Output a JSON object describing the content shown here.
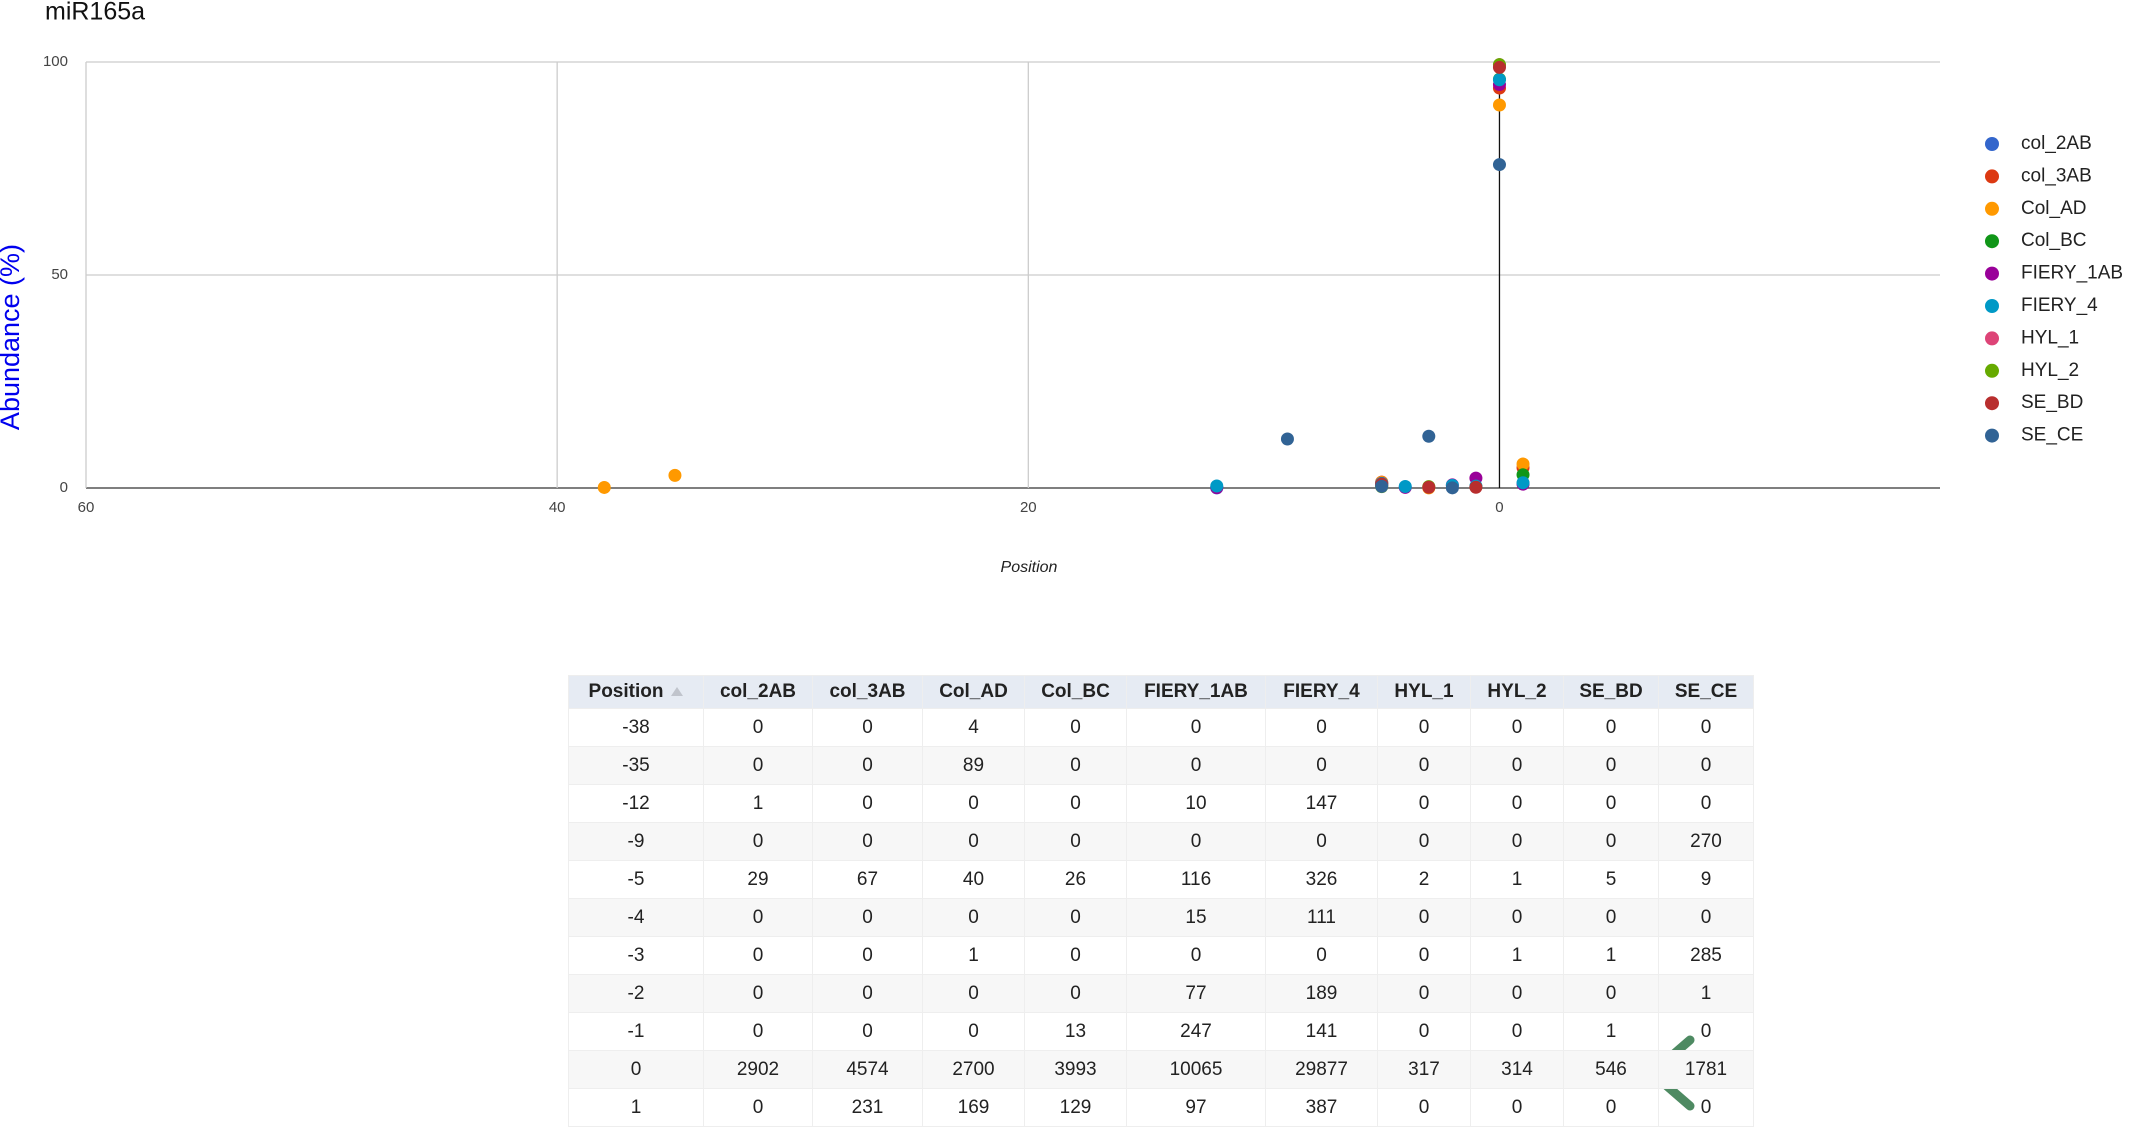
{
  "chart_data": {
    "type": "scatter",
    "title": "miR165a",
    "x_label": "Position",
    "y_label": "Abundance (%)",
    "x": [
      -38,
      -35,
      -12,
      -9,
      -5,
      -4,
      -3,
      -2,
      -1,
      0,
      1
    ],
    "xlim": [
      -60,
      18.7
    ],
    "xticks": [
      {
        "value": -60,
        "label": "60"
      },
      {
        "value": -40,
        "label": "40"
      },
      {
        "value": -20,
        "label": "20"
      },
      0
    ],
    "ylim": [
      0,
      100
    ],
    "yticks": [
      0,
      50,
      100
    ],
    "grid": true,
    "legend": "right",
    "series": [
      {
        "name": "col_2AB",
        "color": "#3366cc",
        "values": [
          null,
          null,
          0.03,
          null,
          0.99,
          null,
          null,
          null,
          null,
          98.98,
          null
        ]
      },
      {
        "name": "col_3AB",
        "color": "#dc3912",
        "values": [
          null,
          null,
          null,
          null,
          1.38,
          null,
          null,
          null,
          null,
          93.88,
          4.74
        ]
      },
      {
        "name": "Col_AD",
        "color": "#ff9900",
        "values": [
          0.13,
          2.96,
          null,
          null,
          1.33,
          null,
          0.03,
          null,
          null,
          89.91,
          5.63
        ]
      },
      {
        "name": "Col_BC",
        "color": "#109618",
        "values": [
          null,
          null,
          null,
          null,
          0.62,
          null,
          null,
          null,
          0.31,
          95.96,
          3.1
        ]
      },
      {
        "name": "FIERY_1AB",
        "color": "#990099",
        "values": [
          null,
          null,
          0.09,
          null,
          1.09,
          0.14,
          null,
          0.72,
          2.32,
          94.71,
          0.91
        ]
      },
      {
        "name": "FIERY_4",
        "color": "#0099c6",
        "values": [
          null,
          null,
          0.47,
          null,
          1.05,
          0.36,
          null,
          0.61,
          0.45,
          95.83,
          1.24
        ]
      },
      {
        "name": "HYL_1",
        "color": "#dd4477",
        "values": [
          null,
          null,
          null,
          null,
          0.63,
          null,
          null,
          null,
          null,
          99.37,
          null
        ]
      },
      {
        "name": "HYL_2",
        "color": "#66aa00",
        "values": [
          null,
          null,
          null,
          null,
          0.32,
          null,
          0.32,
          null,
          null,
          99.37,
          null
        ]
      },
      {
        "name": "SE_BD",
        "color": "#b82e2e",
        "values": [
          null,
          null,
          null,
          null,
          0.9,
          null,
          0.18,
          null,
          0.18,
          98.73,
          null
        ]
      },
      {
        "name": "SE_CE",
        "color": "#316395",
        "values": [
          null,
          null,
          null,
          11.51,
          0.38,
          null,
          12.15,
          0.04,
          null,
          75.92,
          null
        ]
      }
    ]
  },
  "table": {
    "columns": [
      "Position",
      "col_2AB",
      "col_3AB",
      "Col_AD",
      "Col_BC",
      "FIERY_1AB",
      "FIERY_4",
      "HYL_1",
      "HYL_2",
      "SE_BD",
      "SE_CE"
    ],
    "rows": [
      [
        -38,
        0,
        0,
        4,
        0,
        0,
        0,
        0,
        0,
        0,
        0
      ],
      [
        -35,
        0,
        0,
        89,
        0,
        0,
        0,
        0,
        0,
        0,
        0
      ],
      [
        -12,
        1,
        0,
        0,
        0,
        10,
        147,
        0,
        0,
        0,
        0
      ],
      [
        -9,
        0,
        0,
        0,
        0,
        0,
        0,
        0,
        0,
        0,
        270
      ],
      [
        -5,
        29,
        67,
        40,
        26,
        116,
        326,
        2,
        1,
        5,
        9
      ],
      [
        -4,
        0,
        0,
        0,
        0,
        15,
        111,
        0,
        0,
        0,
        0
      ],
      [
        -3,
        0,
        0,
        1,
        0,
        0,
        0,
        0,
        1,
        1,
        285
      ],
      [
        -2,
        0,
        0,
        0,
        0,
        77,
        189,
        0,
        0,
        0,
        1
      ],
      [
        -1,
        0,
        0,
        0,
        13,
        247,
        141,
        0,
        0,
        1,
        0
      ],
      [
        0,
        2902,
        4574,
        2700,
        3993,
        10065,
        29877,
        317,
        314,
        546,
        1781
      ],
      [
        1,
        0,
        231,
        169,
        129,
        97,
        387,
        0,
        0,
        0,
        0
      ]
    ]
  }
}
